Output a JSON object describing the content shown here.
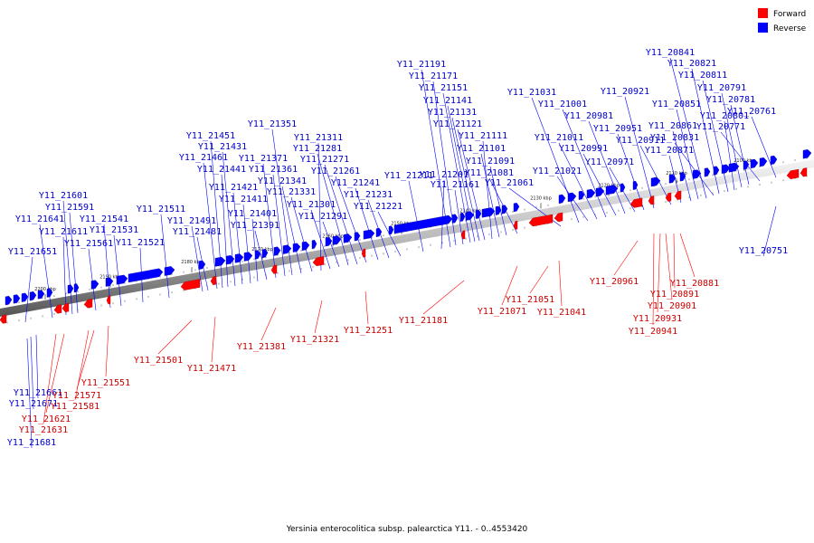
{
  "caption": "Yersinia enterocolitica subsp. palearctica Y11. - 0..4553420",
  "legend": [
    {
      "label": "Forward",
      "color": "#ff0000"
    },
    {
      "label": "Reverse",
      "color": "#0000ff"
    }
  ],
  "colors": {
    "forward": "#ff0000",
    "reverse": "#0000ff",
    "axis": "#888888",
    "forward_label": "#cc0000",
    "reverse_label": "#0000cc"
  },
  "axis_ticks": [
    "2200 kbp",
    "2190 kbp",
    "2180 kbp",
    "2170 kbp",
    "2160 kbp",
    "2150 kbp",
    "2140 kbp",
    "2130 kbp",
    "2120 kbp",
    "2110 kbp",
    "2100 kbp"
  ],
  "reverse_genes": [
    "Y11_20761",
    "Y11_20771",
    "Y11_20781",
    "Y11_20791",
    "Y11_20801",
    "Y11_20811",
    "Y11_20821",
    "Y11_20831",
    "Y11_20841",
    "Y11_20851",
    "Y11_20861",
    "Y11_20871",
    "Y11_20911",
    "Y11_20921",
    "Y11_20951",
    "Y11_20971",
    "Y11_20981",
    "Y11_20991",
    "Y11_21001",
    "Y11_21011",
    "Y11_21021",
    "Y11_21031",
    "Y11_21061",
    "Y11_21081",
    "Y11_21091",
    "Y11_21101",
    "Y11_21111",
    "Y11_21121",
    "Y11_21131",
    "Y11_21141",
    "Y11_21151",
    "Y11_21161",
    "Y11_21171",
    "Y11_21191",
    "Y11_21201",
    "Y11_21211",
    "Y11_21221",
    "Y11_21231",
    "Y11_21241",
    "Y11_21261",
    "Y11_21271",
    "Y11_21281",
    "Y11_21291",
    "Y11_21301",
    "Y11_21311",
    "Y11_21331",
    "Y11_21341",
    "Y11_21351",
    "Y11_21361",
    "Y11_21371",
    "Y11_21391",
    "Y11_21401",
    "Y11_21411",
    "Y11_21421",
    "Y11_21431",
    "Y11_21441",
    "Y11_21451",
    "Y11_21461",
    "Y11_21481",
    "Y11_21491",
    "Y11_21511",
    "Y11_21521",
    "Y11_21531",
    "Y11_21541",
    "Y11_21561",
    "Y11_21591",
    "Y11_21601",
    "Y11_21611",
    "Y11_21641",
    "Y11_21651",
    "Y11_21661",
    "Y11_21671",
    "Y11_21681",
    "Y11_20751"
  ],
  "forward_genes": [
    "Y11_20881",
    "Y11_20891",
    "Y11_20901",
    "Y11_20931",
    "Y11_20941",
    "Y11_20961",
    "Y11_21041",
    "Y11_21051",
    "Y11_21071",
    "Y11_21181",
    "Y11_21251",
    "Y11_21321",
    "Y11_21381",
    "Y11_21471",
    "Y11_21501",
    "Y11_21551",
    "Y11_21571",
    "Y11_21581",
    "Y11_21621",
    "Y11_21631"
  ]
}
